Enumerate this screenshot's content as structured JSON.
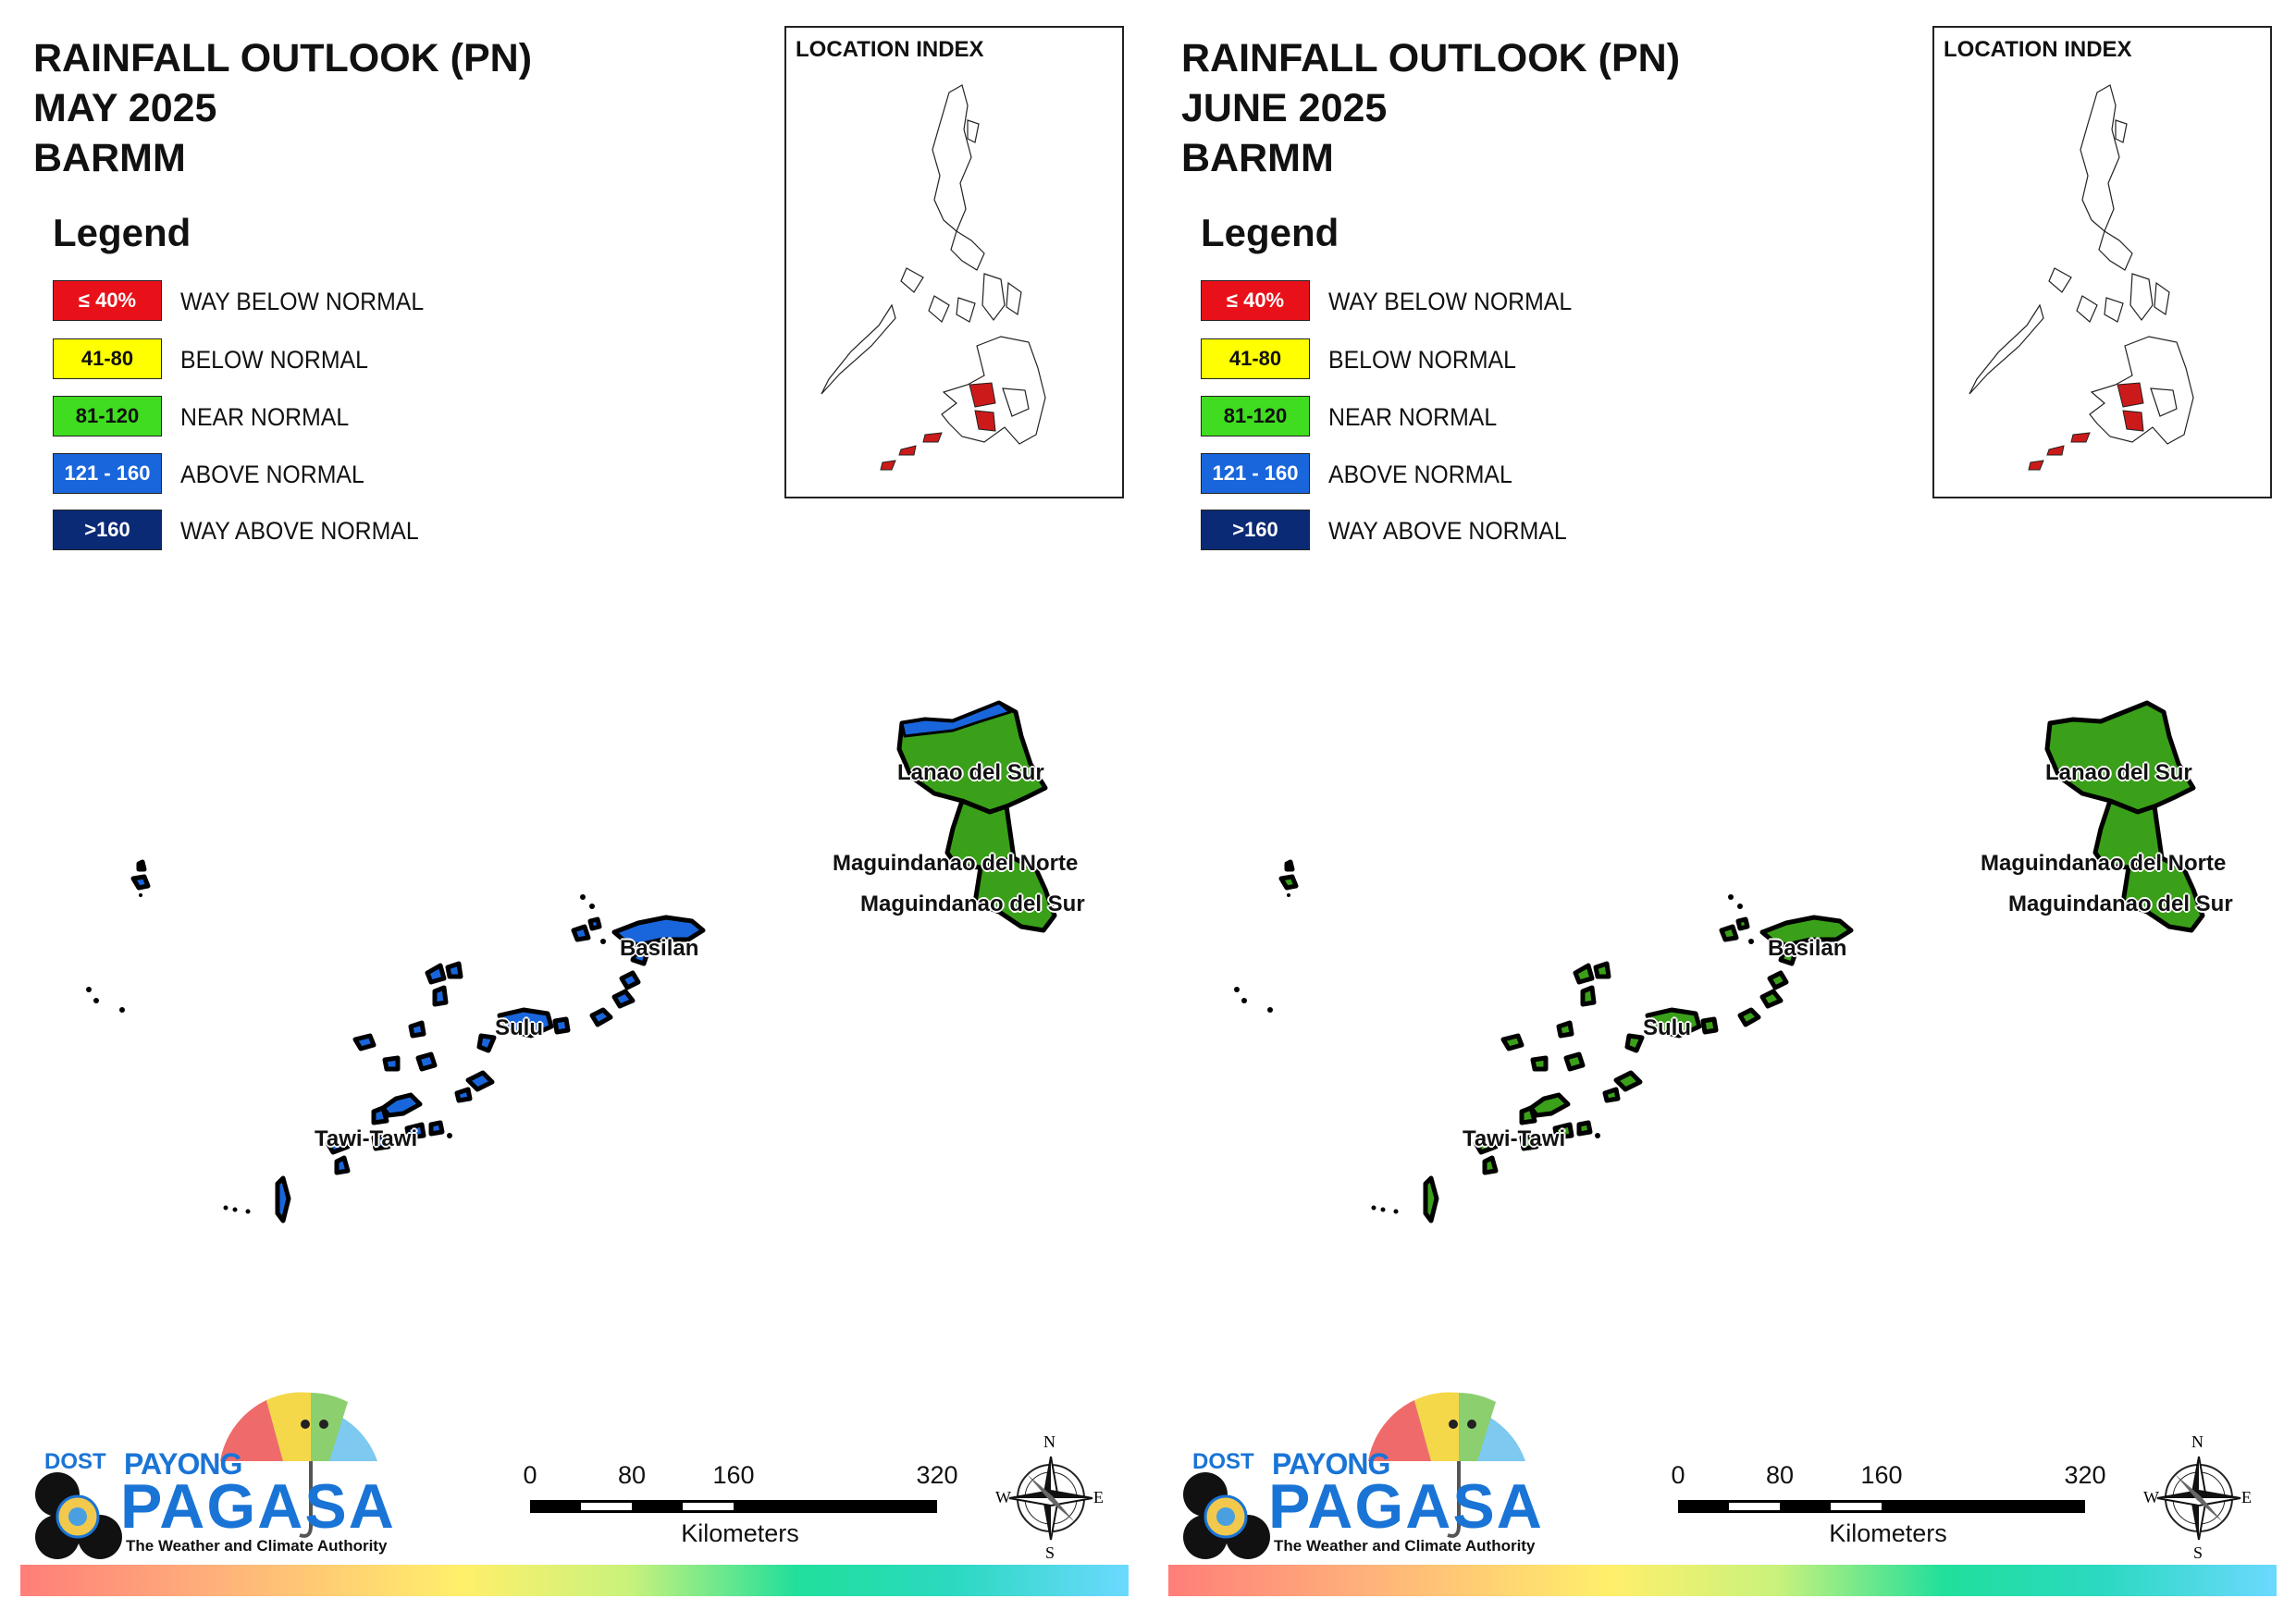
{
  "panels": [
    {
      "title_line1": "RAINFALL OUTLOOK (PN)",
      "title_line2": "MAY 2025",
      "title_line3": "BARMM",
      "legend_title": "Legend",
      "legend": [
        {
          "range": "≤ 40%",
          "label": "WAY BELOW NORMAL",
          "color": "#e8111a",
          "text_color": "#ffffff"
        },
        {
          "range": "41-80",
          "label": "BELOW NORMAL",
          "color": "#ffff00",
          "text_color": "#111111"
        },
        {
          "range": "81-120",
          "label": "NEAR NORMAL",
          "color": "#3fdc1f",
          "text_color": "#111111"
        },
        {
          "range": "121 - 160",
          "label": "ABOVE NORMAL",
          "color": "#1966dc",
          "text_color": "#ffffff"
        },
        {
          "range": ">160",
          "label": "WAY ABOVE NORMAL",
          "color": "#0b2a75",
          "text_color": "#ffffff"
        }
      ],
      "location_index_title": "LOCATION INDEX",
      "provinces": [
        {
          "name": "Lanao del Sur",
          "category": "NEAR NORMAL"
        },
        {
          "name": "Maguindanao del Norte",
          "category": "NEAR NORMAL"
        },
        {
          "name": "Maguindanao del Sur",
          "category": "NEAR NORMAL"
        },
        {
          "name": "Basilan",
          "category": "ABOVE NORMAL"
        },
        {
          "name": "Sulu",
          "category": "ABOVE NORMAL"
        },
        {
          "name": "Tawi-Tawi",
          "category": "ABOVE NORMAL"
        }
      ],
      "island_color": "#1966dc",
      "lanao_strip_color": "#1966dc",
      "mainland_color": "#3aa019",
      "scale": {
        "ticks": [
          "0",
          "80",
          "160",
          "320"
        ],
        "unit": "Kilometers"
      },
      "compass": {
        "n": "N",
        "e": "E",
        "s": "S",
        "w": "W"
      },
      "logo": {
        "dost": "DOST",
        "payong": "PAYONG",
        "pagasa": "PAGASA",
        "tagline": "The Weather and Climate Authority"
      }
    },
    {
      "title_line1": "RAINFALL OUTLOOK (PN)",
      "title_line2": "JUNE 2025",
      "title_line3": "BARMM",
      "legend_title": "Legend",
      "legend": [
        {
          "range": "≤ 40%",
          "label": "WAY BELOW NORMAL",
          "color": "#e8111a",
          "text_color": "#ffffff"
        },
        {
          "range": "41-80",
          "label": "BELOW NORMAL",
          "color": "#ffff00",
          "text_color": "#111111"
        },
        {
          "range": "81-120",
          "label": "NEAR NORMAL",
          "color": "#3fdc1f",
          "text_color": "#111111"
        },
        {
          "range": "121 - 160",
          "label": "ABOVE NORMAL",
          "color": "#1966dc",
          "text_color": "#ffffff"
        },
        {
          "range": ">160",
          "label": "WAY ABOVE NORMAL",
          "color": "#0b2a75",
          "text_color": "#ffffff"
        }
      ],
      "location_index_title": "LOCATION INDEX",
      "provinces": [
        {
          "name": "Lanao del Sur",
          "category": "NEAR NORMAL"
        },
        {
          "name": "Maguindanao del Norte",
          "category": "NEAR NORMAL"
        },
        {
          "name": "Maguindanao del Sur",
          "category": "NEAR NORMAL"
        },
        {
          "name": "Basilan",
          "category": "NEAR NORMAL"
        },
        {
          "name": "Sulu",
          "category": "NEAR NORMAL"
        },
        {
          "name": "Tawi-Tawi",
          "category": "NEAR NORMAL"
        }
      ],
      "island_color": "#3aa019",
      "lanao_strip_color": "#3aa019",
      "mainland_color": "#3aa019",
      "scale": {
        "ticks": [
          "0",
          "80",
          "160",
          "320"
        ],
        "unit": "Kilometers"
      },
      "compass": {
        "n": "N",
        "e": "E",
        "s": "S",
        "w": "W"
      },
      "logo": {
        "dost": "DOST",
        "payong": "PAYONG",
        "pagasa": "PAGASA",
        "tagline": "The Weather and Climate Authority"
      }
    }
  ]
}
